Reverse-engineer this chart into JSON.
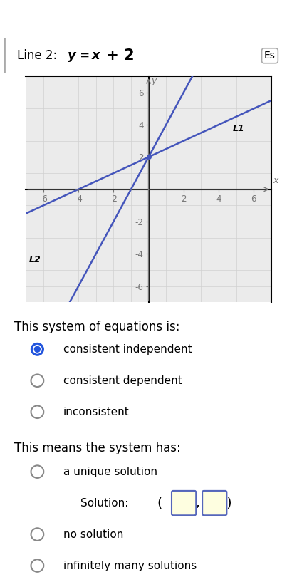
{
  "graph": {
    "xlim": [
      -7,
      7
    ],
    "ylim": [
      -7,
      7
    ],
    "xticks": [
      -6,
      -4,
      -2,
      0,
      2,
      4,
      6
    ],
    "yticks": [
      -6,
      -4,
      -2,
      0,
      2,
      4,
      6
    ],
    "line1_slope": 0.5,
    "line1_intercept": 2,
    "line1_label": "L1",
    "line2_slope": 2.0,
    "line2_intercept": 2,
    "line2_label": "L2",
    "line_color": "#4455bb",
    "grid_color": "#d0d0d0",
    "axis_color": "#777777",
    "bg_color": "#ebebeb"
  },
  "title_plain": "Line 2: ",
  "title_italic": "y",
  "title_mid": " = ",
  "title_italic2": "x",
  "title_end": " + 2",
  "button_text": "Es",
  "text_system": "This system of equations is:",
  "options_system": [
    {
      "text": "consistent independent",
      "selected": true
    },
    {
      "text": "consistent dependent",
      "selected": false
    },
    {
      "text": "inconsistent",
      "selected": false
    }
  ],
  "text_means": "This means the system has:",
  "options_means": [
    {
      "text": "a unique solution",
      "selected": false
    },
    {
      "text": "no solution",
      "selected": false
    },
    {
      "text": "infinitely many solutions",
      "selected": false
    }
  ],
  "solution_label": "Solution:",
  "radio_selected_color": "#2255dd",
  "radio_unselected_color": "#888888",
  "box_face": "#fefee0",
  "box_edge": "#5566bb",
  "bg_page": "#ffffff"
}
